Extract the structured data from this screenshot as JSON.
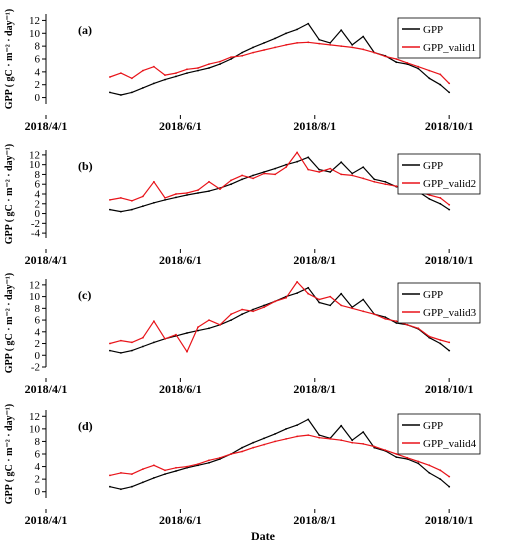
{
  "chart_data": [
    {
      "type": "line",
      "panel_label": "(a)",
      "ylabel": "GPP ( gC · m⁻² · day⁻¹)",
      "xlabel": "",
      "ylim": [
        -1,
        13
      ],
      "yticks": [
        0,
        2,
        4,
        6,
        8,
        10,
        12
      ],
      "xlim": [
        "2018-04-01",
        "2018-10-15"
      ],
      "xticks": [
        "2018/4/1",
        "2018/6/1",
        "2018/8/1",
        "2018/10/1"
      ],
      "legend_position": "top-right",
      "colors": {
        "GPP": "#000000",
        "valid": "#e8141a"
      },
      "series": [
        {
          "name": "GPP",
          "color": "#000000",
          "x": [
            "2018-04-30",
            "2018-05-05",
            "2018-05-10",
            "2018-05-15",
            "2018-05-20",
            "2018-05-25",
            "2018-05-30",
            "2018-06-04",
            "2018-06-09",
            "2018-06-14",
            "2018-06-19",
            "2018-06-24",
            "2018-06-29",
            "2018-07-04",
            "2018-07-09",
            "2018-07-14",
            "2018-07-19",
            "2018-07-24",
            "2018-07-29",
            "2018-08-03",
            "2018-08-08",
            "2018-08-13",
            "2018-08-18",
            "2018-08-23",
            "2018-08-28",
            "2018-09-02",
            "2018-09-07",
            "2018-09-12",
            "2018-09-17",
            "2018-09-22",
            "2018-09-27",
            "2018-10-01"
          ],
          "y": [
            0.8,
            0.4,
            0.8,
            1.5,
            2.2,
            2.8,
            3.3,
            3.8,
            4.2,
            4.6,
            5.2,
            6.0,
            7.0,
            7.8,
            8.5,
            9.2,
            10.0,
            10.6,
            11.5,
            9.0,
            8.5,
            10.5,
            8.2,
            9.5,
            7.0,
            6.5,
            5.5,
            5.2,
            4.5,
            3.0,
            2.0,
            0.8
          ]
        },
        {
          "name": "GPP_valid1",
          "color": "#e8141a",
          "x": [
            "2018-04-30",
            "2018-05-05",
            "2018-05-10",
            "2018-05-15",
            "2018-05-20",
            "2018-05-25",
            "2018-05-30",
            "2018-06-04",
            "2018-06-09",
            "2018-06-14",
            "2018-06-19",
            "2018-06-24",
            "2018-06-29",
            "2018-07-04",
            "2018-07-09",
            "2018-07-14",
            "2018-07-19",
            "2018-07-24",
            "2018-07-29",
            "2018-08-03",
            "2018-08-08",
            "2018-08-13",
            "2018-08-18",
            "2018-08-23",
            "2018-08-28",
            "2018-09-02",
            "2018-09-07",
            "2018-09-12",
            "2018-09-17",
            "2018-09-22",
            "2018-09-27",
            "2018-10-01"
          ],
          "y": [
            3.2,
            3.8,
            3.0,
            4.2,
            4.8,
            3.5,
            3.8,
            4.4,
            4.6,
            5.2,
            5.6,
            6.3,
            6.5,
            7.0,
            7.4,
            7.8,
            8.2,
            8.5,
            8.6,
            8.4,
            8.2,
            8.0,
            7.8,
            7.5,
            7.0,
            6.4,
            6.0,
            5.4,
            4.8,
            4.2,
            3.6,
            2.2
          ]
        }
      ]
    },
    {
      "type": "line",
      "panel_label": "(b)",
      "ylabel": "GPP ( gC · m⁻² · day⁻¹)",
      "xlabel": "",
      "ylim": [
        -5,
        13
      ],
      "yticks": [
        -4,
        -2,
        0,
        2,
        4,
        6,
        8,
        10,
        12
      ],
      "xlim": [
        "2018-04-01",
        "2018-10-15"
      ],
      "xticks": [
        "2018/4/1",
        "2018/6/1",
        "2018/8/1",
        "2018/10/1"
      ],
      "legend_position": "top-right",
      "series": [
        {
          "name": "GPP",
          "color": "#000000",
          "x": [
            "2018-04-30",
            "2018-05-05",
            "2018-05-10",
            "2018-05-15",
            "2018-05-20",
            "2018-05-25",
            "2018-05-30",
            "2018-06-04",
            "2018-06-09",
            "2018-06-14",
            "2018-06-19",
            "2018-06-24",
            "2018-06-29",
            "2018-07-04",
            "2018-07-09",
            "2018-07-14",
            "2018-07-19",
            "2018-07-24",
            "2018-07-29",
            "2018-08-03",
            "2018-08-08",
            "2018-08-13",
            "2018-08-18",
            "2018-08-23",
            "2018-08-28",
            "2018-09-02",
            "2018-09-07",
            "2018-09-12",
            "2018-09-17",
            "2018-09-22",
            "2018-09-27",
            "2018-10-01"
          ],
          "y": [
            0.8,
            0.4,
            0.8,
            1.5,
            2.2,
            2.8,
            3.3,
            3.8,
            4.2,
            4.6,
            5.2,
            6.0,
            7.0,
            7.8,
            8.5,
            9.2,
            10.0,
            10.6,
            11.5,
            9.0,
            8.5,
            10.5,
            8.2,
            9.5,
            7.0,
            6.5,
            5.5,
            5.2,
            4.5,
            3.0,
            2.0,
            0.8
          ]
        },
        {
          "name": "GPP_valid2",
          "color": "#e8141a",
          "x": [
            "2018-04-30",
            "2018-05-05",
            "2018-05-10",
            "2018-05-15",
            "2018-05-20",
            "2018-05-25",
            "2018-05-30",
            "2018-06-04",
            "2018-06-09",
            "2018-06-14",
            "2018-06-19",
            "2018-06-24",
            "2018-06-29",
            "2018-07-04",
            "2018-07-09",
            "2018-07-14",
            "2018-07-19",
            "2018-07-24",
            "2018-07-29",
            "2018-08-03",
            "2018-08-08",
            "2018-08-13",
            "2018-08-18",
            "2018-08-23",
            "2018-08-28",
            "2018-09-02",
            "2018-09-07",
            "2018-09-12",
            "2018-09-17",
            "2018-09-22",
            "2018-09-27",
            "2018-10-01"
          ],
          "y": [
            2.8,
            3.2,
            2.6,
            3.5,
            6.5,
            3.2,
            4.0,
            4.2,
            4.8,
            6.5,
            5.0,
            6.8,
            7.8,
            7.2,
            8.2,
            8.0,
            9.5,
            12.5,
            9.0,
            8.5,
            9.2,
            8.0,
            7.8,
            7.2,
            6.5,
            6.0,
            5.6,
            5.0,
            4.6,
            3.8,
            3.2,
            1.8
          ]
        }
      ]
    },
    {
      "type": "line",
      "panel_label": "(c)",
      "ylabel": "GPP ( gC · m⁻² · day⁻¹)",
      "xlabel": "",
      "ylim": [
        -2,
        13
      ],
      "yticks": [
        -2,
        0,
        2,
        4,
        6,
        8,
        10,
        12
      ],
      "xlim": [
        "2018-04-01",
        "2018-10-15"
      ],
      "xticks": [
        "2018/4/1",
        "2018/6/1",
        "2018/8/1",
        "2018/10/1"
      ],
      "legend_position": "top-right",
      "series": [
        {
          "name": "GPP",
          "color": "#000000",
          "x": [
            "2018-04-30",
            "2018-05-05",
            "2018-05-10",
            "2018-05-15",
            "2018-05-20",
            "2018-05-25",
            "2018-05-30",
            "2018-06-04",
            "2018-06-09",
            "2018-06-14",
            "2018-06-19",
            "2018-06-24",
            "2018-06-29",
            "2018-07-04",
            "2018-07-09",
            "2018-07-14",
            "2018-07-19",
            "2018-07-24",
            "2018-07-29",
            "2018-08-03",
            "2018-08-08",
            "2018-08-13",
            "2018-08-18",
            "2018-08-23",
            "2018-08-28",
            "2018-09-02",
            "2018-09-07",
            "2018-09-12",
            "2018-09-17",
            "2018-09-22",
            "2018-09-27",
            "2018-10-01"
          ],
          "y": [
            0.8,
            0.4,
            0.8,
            1.5,
            2.2,
            2.8,
            3.3,
            3.8,
            4.2,
            4.6,
            5.2,
            6.0,
            7.0,
            7.8,
            8.5,
            9.2,
            10.0,
            10.6,
            11.5,
            9.0,
            8.5,
            10.5,
            8.2,
            9.5,
            7.0,
            6.5,
            5.5,
            5.2,
            4.5,
            3.0,
            2.0,
            0.8
          ]
        },
        {
          "name": "GPP_valid3",
          "color": "#e8141a",
          "x": [
            "2018-04-30",
            "2018-05-05",
            "2018-05-10",
            "2018-05-15",
            "2018-05-20",
            "2018-05-25",
            "2018-05-30",
            "2018-06-04",
            "2018-06-09",
            "2018-06-14",
            "2018-06-19",
            "2018-06-24",
            "2018-06-29",
            "2018-07-04",
            "2018-07-09",
            "2018-07-14",
            "2018-07-19",
            "2018-07-24",
            "2018-07-29",
            "2018-08-03",
            "2018-08-08",
            "2018-08-13",
            "2018-08-18",
            "2018-08-23",
            "2018-08-28",
            "2018-09-02",
            "2018-09-07",
            "2018-09-12",
            "2018-09-17",
            "2018-09-22",
            "2018-09-27",
            "2018-10-01"
          ],
          "y": [
            2.0,
            2.5,
            2.2,
            3.0,
            5.8,
            2.8,
            3.5,
            0.6,
            4.8,
            6.0,
            5.2,
            7.0,
            7.8,
            7.5,
            8.2,
            9.2,
            9.8,
            12.5,
            10.5,
            9.5,
            10.0,
            8.5,
            8.0,
            7.5,
            7.0,
            6.2,
            5.8,
            5.2,
            4.6,
            3.2,
            2.6,
            2.2
          ]
        }
      ]
    },
    {
      "type": "line",
      "panel_label": "(d)",
      "ylabel": "GPP ( gC · m⁻² · day⁻¹)",
      "xlabel": "Date",
      "ylim": [
        -1,
        13
      ],
      "yticks": [
        0,
        2,
        4,
        6,
        8,
        10,
        12
      ],
      "xlim": [
        "2018-04-01",
        "2018-10-15"
      ],
      "xticks": [
        "2018/4/1",
        "2018/6/1",
        "2018/8/1",
        "2018/10/1"
      ],
      "legend_position": "top-right",
      "series": [
        {
          "name": "GPP",
          "color": "#000000",
          "x": [
            "2018-04-30",
            "2018-05-05",
            "2018-05-10",
            "2018-05-15",
            "2018-05-20",
            "2018-05-25",
            "2018-05-30",
            "2018-06-04",
            "2018-06-09",
            "2018-06-14",
            "2018-06-19",
            "2018-06-24",
            "2018-06-29",
            "2018-07-04",
            "2018-07-09",
            "2018-07-14",
            "2018-07-19",
            "2018-07-24",
            "2018-07-29",
            "2018-08-03",
            "2018-08-08",
            "2018-08-13",
            "2018-08-18",
            "2018-08-23",
            "2018-08-28",
            "2018-09-02",
            "2018-09-07",
            "2018-09-12",
            "2018-09-17",
            "2018-09-22",
            "2018-09-27",
            "2018-10-01"
          ],
          "y": [
            0.8,
            0.4,
            0.8,
            1.5,
            2.2,
            2.8,
            3.3,
            3.8,
            4.2,
            4.6,
            5.2,
            6.0,
            7.0,
            7.8,
            8.5,
            9.2,
            10.0,
            10.6,
            11.5,
            9.0,
            8.5,
            10.5,
            8.2,
            9.5,
            7.0,
            6.5,
            5.5,
            5.2,
            4.5,
            3.0,
            2.0,
            0.8
          ]
        },
        {
          "name": "GPP_valid4",
          "color": "#e8141a",
          "x": [
            "2018-04-30",
            "2018-05-05",
            "2018-05-10",
            "2018-05-15",
            "2018-05-20",
            "2018-05-25",
            "2018-05-30",
            "2018-06-04",
            "2018-06-09",
            "2018-06-14",
            "2018-06-19",
            "2018-06-24",
            "2018-06-29",
            "2018-07-04",
            "2018-07-09",
            "2018-07-14",
            "2018-07-19",
            "2018-07-24",
            "2018-07-29",
            "2018-08-03",
            "2018-08-08",
            "2018-08-13",
            "2018-08-18",
            "2018-08-23",
            "2018-08-28",
            "2018-09-02",
            "2018-09-07",
            "2018-09-12",
            "2018-09-17",
            "2018-09-22",
            "2018-09-27",
            "2018-10-01"
          ],
          "y": [
            2.6,
            3.0,
            2.8,
            3.6,
            4.2,
            3.4,
            3.8,
            4.0,
            4.4,
            5.0,
            5.4,
            6.0,
            6.4,
            7.0,
            7.5,
            8.0,
            8.4,
            8.8,
            9.0,
            8.6,
            8.4,
            8.2,
            7.8,
            7.6,
            7.2,
            6.6,
            6.0,
            5.4,
            4.8,
            4.2,
            3.4,
            2.4
          ]
        }
      ]
    }
  ]
}
